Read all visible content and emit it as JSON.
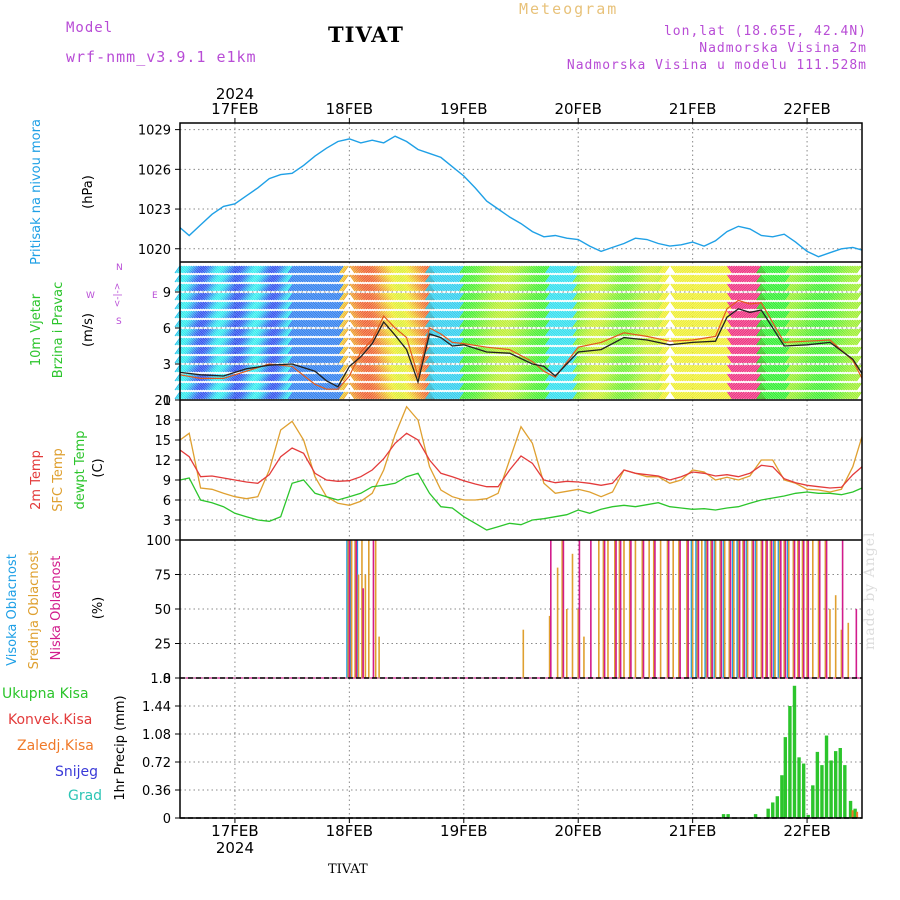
{
  "header": {
    "meteogram_title": "Meteogram",
    "model_label": "Model",
    "model_name": "wrf-nmm_v3.9.1 e1km",
    "station_title": "TIVAT",
    "lonlat": "lon,lat (18.65E, 42.4N)",
    "elevation": "Nadmorska Visina 2m",
    "model_elevation": "Nadmorska Visina u modelu 111.528m"
  },
  "footer": {
    "station": "TIVAT",
    "credit": "made by Angel"
  },
  "time_axis": {
    "year": "2024",
    "ticks": [
      "17FEB",
      "18FEB",
      "19FEB",
      "20FEB",
      "21FEB",
      "22FEB"
    ],
    "start_day": 16.52,
    "end_day": 22.48
  },
  "colors": {
    "pressure": "#1fa0e6",
    "temp2m": "#e33b3b",
    "sfc": "#dfa030",
    "dewpt": "#2cc52c",
    "high_cloud": "#1fa0e6",
    "mid_cloud": "#dfa030",
    "low_cloud": "#d21c8c",
    "total_precip": "#2cc52c",
    "conv_precip": "#e33b3b",
    "freezing": "#f07a2a",
    "snow": "#3a3ad8",
    "hail": "#2cc5b5",
    "purple": "#b84cd6"
  },
  "chart_data": [
    {
      "type": "line",
      "panel": "pressure",
      "ylabel_name": "Pritisak na nivou mora",
      "ylabel_unit": "(hPa)",
      "yticks": [
        "1020",
        "1023",
        "1026",
        "1029"
      ],
      "ylim": [
        1019,
        1029.5
      ],
      "x_days": [
        16.52,
        16.6,
        16.7,
        16.8,
        16.9,
        17.0,
        17.1,
        17.2,
        17.3,
        17.4,
        17.5,
        17.6,
        17.7,
        17.8,
        17.9,
        18.0,
        18.1,
        18.2,
        18.3,
        18.4,
        18.5,
        18.6,
        18.7,
        18.8,
        18.9,
        19.0,
        19.1,
        19.2,
        19.3,
        19.4,
        19.5,
        19.6,
        19.7,
        19.8,
        19.9,
        20.0,
        20.1,
        20.2,
        20.3,
        20.4,
        20.5,
        20.6,
        20.7,
        20.8,
        20.9,
        21.0,
        21.1,
        21.2,
        21.3,
        21.4,
        21.5,
        21.6,
        21.7,
        21.8,
        21.9,
        22.0,
        22.1,
        22.2,
        22.3,
        22.4,
        22.48
      ],
      "series": [
        {
          "values": [
            1021.6,
            1021.0,
            1021.8,
            1022.6,
            1023.2,
            1023.4,
            1024.0,
            1024.6,
            1025.3,
            1025.6,
            1025.7,
            1026.3,
            1027.0,
            1027.6,
            1028.1,
            1028.3,
            1028.0,
            1028.2,
            1028.0,
            1028.5,
            1028.1,
            1027.5,
            1027.2,
            1026.9,
            1026.2,
            1025.5,
            1024.6,
            1023.6,
            1023.0,
            1022.4,
            1021.9,
            1021.3,
            1020.9,
            1021.0,
            1020.8,
            1020.7,
            1020.2,
            1019.8,
            1020.1,
            1020.4,
            1020.8,
            1020.7,
            1020.4,
            1020.2,
            1020.3,
            1020.5,
            1020.2,
            1020.6,
            1021.3,
            1021.7,
            1021.5,
            1021.0,
            1020.9,
            1021.1,
            1020.5,
            1019.8,
            1019.4,
            1019.7,
            1020.0,
            1020.1,
            1019.9
          ]
        }
      ]
    },
    {
      "type": "line",
      "panel": "wind",
      "ylabel_name": "10m Vjetar",
      "ylabel_name2": "Brzina i Pravac",
      "ylabel_unit": "(m/s)",
      "compass": {
        "w": "W",
        "e": "E",
        "n": "N",
        "s": "S",
        "arrows": "<-|->"
      },
      "yticks": [
        "0",
        "3",
        "6",
        "9"
      ],
      "ylim": [
        0,
        11.5
      ],
      "x_days": [
        16.52,
        16.7,
        16.9,
        17.1,
        17.3,
        17.5,
        17.7,
        17.8,
        17.9,
        18.0,
        18.1,
        18.2,
        18.3,
        18.4,
        18.5,
        18.6,
        18.7,
        18.8,
        18.9,
        19.0,
        19.2,
        19.4,
        19.6,
        19.7,
        19.8,
        20.0,
        20.2,
        20.4,
        20.6,
        20.8,
        21.0,
        21.2,
        21.3,
        21.4,
        21.5,
        21.6,
        21.8,
        22.0,
        22.2,
        22.4,
        22.48
      ],
      "series": [
        {
          "name": "wind_speed",
          "values": [
            2.3,
            2.1,
            2.0,
            2.6,
            2.9,
            3.0,
            2.4,
            1.6,
            1.1,
            2.8,
            3.6,
            4.7,
            6.5,
            5.4,
            4.2,
            1.5,
            5.5,
            5.2,
            4.5,
            4.6,
            4.0,
            3.9,
            3.0,
            2.8,
            2.0,
            4.0,
            4.2,
            5.2,
            5.0,
            4.6,
            4.8,
            4.9,
            6.9,
            7.6,
            7.3,
            7.5,
            4.5,
            4.6,
            4.8,
            3.4,
            2.2
          ]
        },
        {
          "name": "wind_gust",
          "values": [
            2.1,
            1.8,
            1.8,
            2.4,
            3.0,
            2.8,
            1.3,
            0.9,
            0.9,
            2.0,
            4.0,
            5.0,
            7.0,
            6.0,
            5.2,
            2.0,
            6.0,
            5.5,
            4.8,
            4.7,
            4.4,
            4.2,
            3.2,
            2.4,
            1.9,
            4.4,
            4.8,
            5.6,
            5.3,
            4.9,
            5.0,
            5.3,
            7.6,
            8.3,
            8.0,
            8.1,
            4.8,
            4.9,
            5.0,
            3.3,
            1.8
          ]
        }
      ]
    },
    {
      "type": "line",
      "panel": "temperature",
      "ylabel_name": "2m Temp",
      "ylabel_name2": "SFC Temp",
      "ylabel_name3": "dewpt Temp",
      "ylabel_unit": "(C)",
      "yticks": [
        "3",
        "6",
        "9",
        "12",
        "15",
        "18",
        "21"
      ],
      "ylim": [
        0,
        21
      ],
      "x_days": [
        16.52,
        16.6,
        16.7,
        16.8,
        16.9,
        17.0,
        17.1,
        17.2,
        17.3,
        17.4,
        17.5,
        17.6,
        17.7,
        17.8,
        17.9,
        18.0,
        18.1,
        18.2,
        18.3,
        18.4,
        18.5,
        18.6,
        18.7,
        18.8,
        18.9,
        19.0,
        19.1,
        19.2,
        19.3,
        19.4,
        19.5,
        19.6,
        19.7,
        19.8,
        19.9,
        20.0,
        20.1,
        20.2,
        20.3,
        20.4,
        20.5,
        20.6,
        20.7,
        20.8,
        20.9,
        21.0,
        21.1,
        21.2,
        21.3,
        21.4,
        21.5,
        21.6,
        21.7,
        21.8,
        21.9,
        22.0,
        22.1,
        22.2,
        22.3,
        22.4,
        22.48
      ],
      "series": [
        {
          "name": "2m",
          "values": [
            13.5,
            12.5,
            9.5,
            9.6,
            9.3,
            9.0,
            8.7,
            8.5,
            9.8,
            12.5,
            13.8,
            13.0,
            10.0,
            9.0,
            8.8,
            8.9,
            9.5,
            10.5,
            12.2,
            14.5,
            16.0,
            15.0,
            12.0,
            10.0,
            9.5,
            8.9,
            8.4,
            8.0,
            8.0,
            10.5,
            12.6,
            11.5,
            9.0,
            8.6,
            8.8,
            8.7,
            8.5,
            8.2,
            8.5,
            10.5,
            10.0,
            9.8,
            9.6,
            9.0,
            9.5,
            10.2,
            10.0,
            9.6,
            9.8,
            9.5,
            10.0,
            11.2,
            11.0,
            9.2,
            8.6,
            8.2,
            8.0,
            7.8,
            7.9,
            9.8,
            11.0
          ]
        },
        {
          "name": "sfc",
          "values": [
            15.0,
            16.0,
            7.8,
            7.6,
            7.0,
            6.5,
            6.2,
            6.5,
            10.5,
            16.5,
            17.8,
            15.0,
            9.5,
            6.5,
            5.5,
            5.2,
            5.8,
            7.0,
            10.5,
            15.8,
            20.0,
            18.0,
            11.0,
            7.5,
            6.5,
            6.0,
            6.0,
            6.2,
            7.0,
            12.0,
            17.0,
            14.5,
            8.5,
            7.0,
            7.3,
            7.6,
            7.2,
            6.5,
            7.2,
            10.5,
            10.0,
            9.5,
            9.5,
            8.5,
            9.0,
            10.5,
            10.2,
            9.0,
            9.4,
            9.0,
            9.6,
            12.0,
            12.0,
            9.0,
            8.5,
            7.6,
            7.5,
            7.2,
            7.6,
            11.0,
            15.5
          ]
        },
        {
          "name": "dewpt",
          "values": [
            9.0,
            9.3,
            6.0,
            5.6,
            5.0,
            4.0,
            3.5,
            3.0,
            2.8,
            3.5,
            8.5,
            9.0,
            7.0,
            6.5,
            6.0,
            6.5,
            7.0,
            8.0,
            8.2,
            8.5,
            9.5,
            10.0,
            7.0,
            5.0,
            4.8,
            3.5,
            2.5,
            1.5,
            2.0,
            2.5,
            2.3,
            3.0,
            3.2,
            3.5,
            3.8,
            4.5,
            4.0,
            4.6,
            5.0,
            5.2,
            5.0,
            5.3,
            5.6,
            5.0,
            4.8,
            4.6,
            4.7,
            4.5,
            4.8,
            5.0,
            5.5,
            6.0,
            6.3,
            6.6,
            7.0,
            7.2,
            7.0,
            7.0,
            6.8,
            7.2,
            7.8
          ]
        }
      ]
    },
    {
      "type": "bar",
      "panel": "clouds",
      "ylabel_name": "Visoka Oblacnost",
      "ylabel_name2": "Srednja Oblacnost",
      "ylabel_name3": "Niska Oblacnost",
      "ylabel_unit": "(%)",
      "yticks": [
        "0",
        "25",
        "50",
        "75",
        "100"
      ],
      "ylim": [
        0,
        100
      ],
      "x_days": [
        17.99,
        18.02,
        18.05,
        18.08,
        18.11,
        18.14,
        18.17,
        18.2,
        18.23,
        18.26,
        19.52,
        19.75,
        19.82,
        19.86,
        19.9,
        19.95,
        20.0,
        20.05,
        20.1,
        20.18,
        20.22,
        20.26,
        20.32,
        20.36,
        20.4,
        20.45,
        20.5,
        20.56,
        20.62,
        20.66,
        20.72,
        20.78,
        20.83,
        20.88,
        20.95,
        21.0,
        21.04,
        21.08,
        21.12,
        21.16,
        21.2,
        21.24,
        21.28,
        21.32,
        21.36,
        21.4,
        21.44,
        21.48,
        21.52,
        21.56,
        21.6,
        21.64,
        21.68,
        21.72,
        21.76,
        21.8,
        21.84,
        21.88,
        21.92,
        21.96,
        22.0,
        22.05,
        22.1,
        22.16,
        22.2,
        22.25,
        22.3,
        22.36,
        22.42
      ],
      "series": [
        {
          "name": "high",
          "values": [
            100,
            100,
            0,
            100,
            0,
            0,
            0,
            0,
            0,
            0,
            0,
            0,
            0,
            0,
            0,
            0,
            0,
            0,
            0,
            0,
            0,
            0,
            0,
            0,
            0,
            0,
            0,
            0,
            0,
            0,
            0,
            0,
            0,
            0,
            0,
            100,
            100,
            0,
            100,
            0,
            100,
            0,
            100,
            0,
            100,
            100,
            0,
            100,
            0,
            100,
            0,
            0,
            0,
            100,
            100,
            0,
            100,
            0,
            0,
            0,
            0,
            0,
            0,
            0,
            0,
            0,
            0,
            0,
            0
          ]
        },
        {
          "name": "mid",
          "values": [
            100,
            100,
            100,
            75,
            100,
            75,
            100,
            0,
            100,
            30,
            35,
            45,
            80,
            100,
            50,
            90,
            50,
            30,
            0,
            100,
            100,
            100,
            100,
            100,
            100,
            100,
            100,
            100,
            100,
            100,
            100,
            100,
            100,
            100,
            100,
            100,
            100,
            100,
            100,
            100,
            100,
            100,
            100,
            100,
            100,
            100,
            100,
            100,
            100,
            100,
            100,
            100,
            100,
            100,
            100,
            100,
            100,
            100,
            100,
            100,
            100,
            100,
            100,
            100,
            50,
            60,
            35,
            40,
            0
          ]
        },
        {
          "name": "low",
          "values": [
            100,
            0,
            100,
            0,
            65,
            0,
            0,
            100,
            0,
            0,
            0,
            100,
            0,
            100,
            0,
            0,
            100,
            0,
            100,
            0,
            100,
            0,
            100,
            100,
            0,
            100,
            0,
            100,
            0,
            100,
            0,
            100,
            0,
            100,
            100,
            0,
            100,
            0,
            100,
            100,
            0,
            100,
            0,
            100,
            0,
            100,
            100,
            0,
            100,
            0,
            100,
            100,
            100,
            0,
            100,
            100,
            0,
            100,
            100,
            100,
            100,
            0,
            100,
            100,
            0,
            0,
            100,
            0,
            50
          ]
        }
      ]
    },
    {
      "type": "bar",
      "panel": "precip",
      "ylabel_name": "1hr Precip",
      "ylabel_unit": "(mm)",
      "legend": [
        "Ukupna Kisa",
        "Konvek.Kisa",
        "Zaledj.Kisa",
        "Snijeg",
        "Grad"
      ],
      "yticks": [
        "0",
        "0.36",
        "0.72",
        "1.08",
        "1.44",
        "1.8"
      ],
      "ylim": [
        0,
        1.8
      ],
      "x_days": [
        21.27,
        21.31,
        21.55,
        21.66,
        21.7,
        21.74,
        21.78,
        21.81,
        21.85,
        21.89,
        21.93,
        21.97,
        22.01,
        22.05,
        22.09,
        22.13,
        22.17,
        22.21,
        22.25,
        22.29,
        22.33,
        22.38,
        22.42
      ],
      "series": [
        {
          "name": "total",
          "values": [
            0.05,
            0.05,
            0.05,
            0.12,
            0.2,
            0.28,
            0.55,
            1.04,
            1.44,
            1.7,
            0.78,
            0.7,
            0.04,
            0.42,
            0.85,
            0.68,
            1.06,
            0.74,
            0.86,
            0.9,
            0.68,
            0.22,
            0.12
          ]
        },
        {
          "name": "freezing",
          "values": [
            0,
            0,
            0,
            0,
            0,
            0,
            0,
            0,
            0,
            0,
            0,
            0,
            0,
            0,
            0,
            0,
            0,
            0,
            0,
            0,
            0,
            0.1,
            0.08
          ]
        }
      ]
    }
  ]
}
